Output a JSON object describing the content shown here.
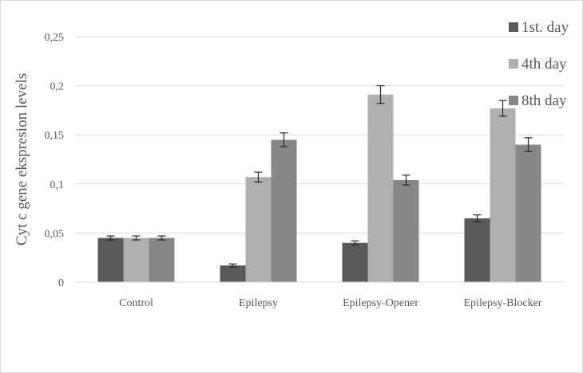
{
  "chart_data": {
    "type": "bar",
    "title": "",
    "xlabel": "",
    "ylabel": "Cyt c gene  ekspresion levels",
    "ylim": [
      0,
      0.25
    ],
    "yticks": [
      0,
      0.05,
      0.1,
      0.15,
      0.2,
      0.25
    ],
    "ytick_labels": [
      "0",
      "0,05",
      "0,1",
      "0,15",
      "0,2",
      "0,25"
    ],
    "grid": true,
    "legend_position": "top-right",
    "categories": [
      "Control",
      "Epilepsy",
      "Epilepsy-Opener",
      "Epilepsy-Blocker"
    ],
    "series": [
      {
        "name": "1st. day",
        "color": "#595959",
        "values": [
          0.045,
          0.017,
          0.04,
          0.065
        ],
        "errors": [
          0.002,
          0.0015,
          0.002,
          0.0035
        ]
      },
      {
        "name": "4th day",
        "color": "#afafaf",
        "values": [
          0.045,
          0.107,
          0.191,
          0.177
        ],
        "errors": [
          0.002,
          0.005,
          0.009,
          0.008
        ]
      },
      {
        "name": "8th day",
        "color": "#878787",
        "values": [
          0.045,
          0.145,
          0.104,
          0.14
        ],
        "errors": [
          0.002,
          0.007,
          0.005,
          0.007
        ]
      }
    ]
  }
}
